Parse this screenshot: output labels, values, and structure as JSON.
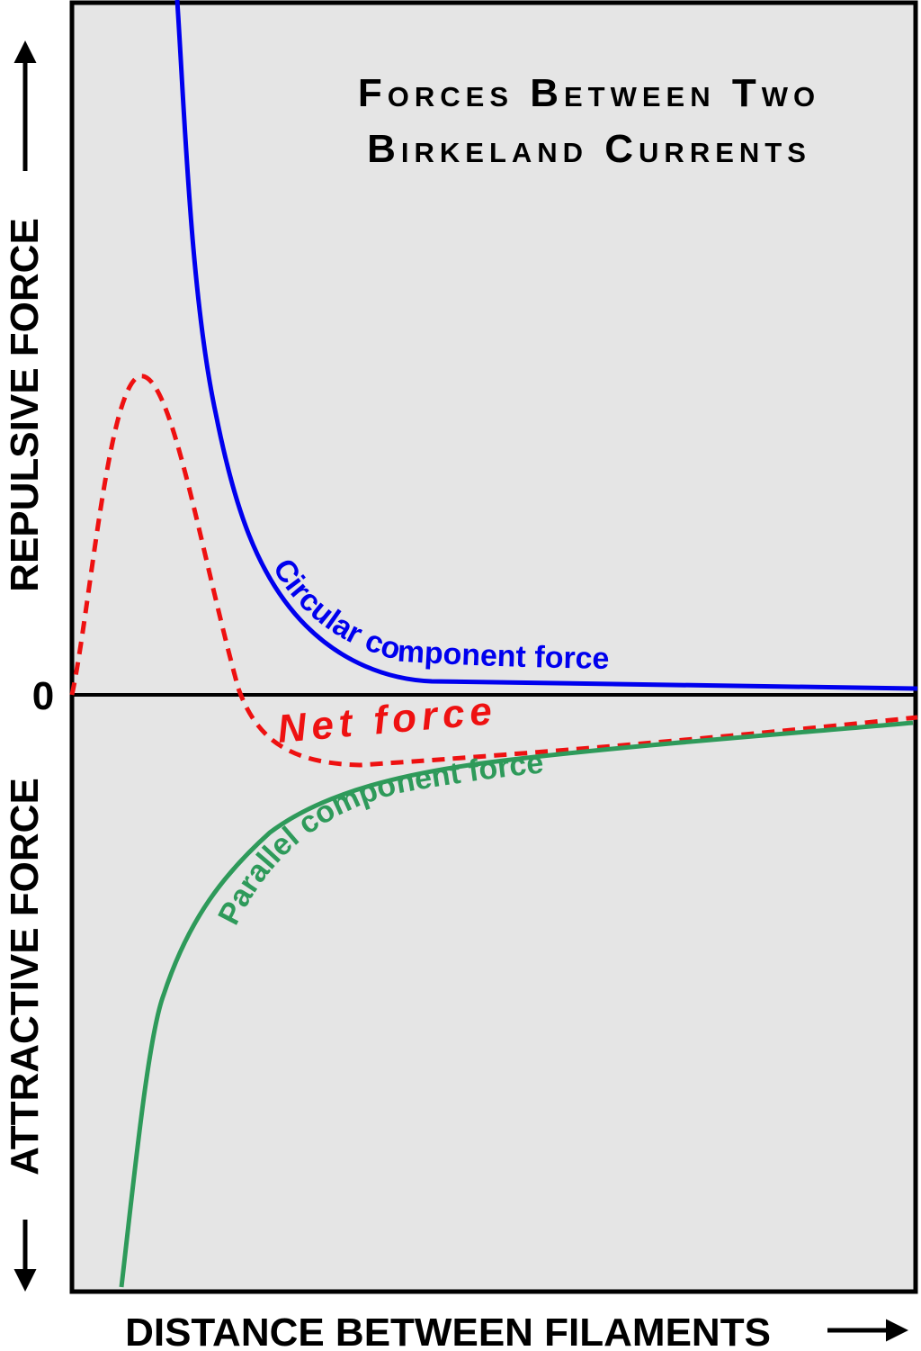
{
  "title": [
    "Forces Between Two",
    "Birkeland Currents"
  ],
  "curves": {
    "circular": "Circular component force",
    "net": "Net force",
    "parallel": "Parallel component force"
  },
  "axes": {
    "zero": "0",
    "repulsive": "REPULSIVE FORCE",
    "attractive": "ATTRACTIVE FORCE",
    "distance": "DISTANCE BETWEEN FILAMENTS"
  }
}
